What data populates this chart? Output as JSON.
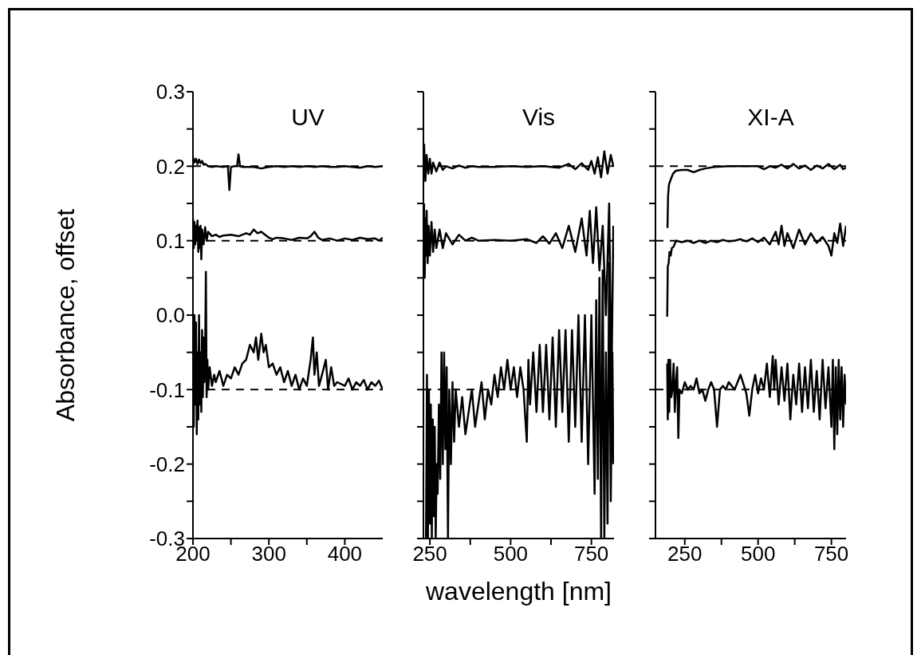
{
  "chart_data": [
    {
      "type": "line",
      "title": "UV",
      "ylabel": "Absorbance, offset",
      "xlim": [
        200,
        450
      ],
      "xticks": [
        200,
        {
          "value": 250,
          "label": null
        },
        300,
        {
          "value": 350,
          "label": null
        },
        400
      ],
      "ylim": [
        -0.3,
        0.3
      ],
      "yticks": [
        -0.3,
        {
          "value": -0.25,
          "label": null
        },
        -0.2,
        {
          "value": -0.15,
          "label": null
        },
        -0.1,
        {
          "value": -0.05,
          "label": null
        },
        {
          "value": 0,
          "label": "0.0"
        },
        {
          "value": 0.05,
          "label": null
        },
        0.1,
        {
          "value": 0.15,
          "label": null
        },
        0.2,
        {
          "value": 0.25,
          "label": null
        },
        0.3
      ],
      "grid": false,
      "legend": false,
      "marker": "none",
      "ref_lines": [
        {
          "axis": "y",
          "value": 0.2,
          "color": "#000000",
          "line_style": "dashed"
        },
        {
          "axis": "y",
          "value": 0.1,
          "color": "#000000",
          "line_style": "dashed"
        },
        {
          "axis": "y",
          "value": -0.1,
          "color": "#000000",
          "line_style": "dashed"
        }
      ],
      "series": [
        {
          "color": "#000000",
          "x": [
            200,
            202,
            204,
            206,
            208,
            210,
            212,
            214,
            216,
            220,
            225,
            230,
            240,
            246,
            248,
            250,
            255,
            258,
            260,
            262,
            265,
            270,
            280,
            290,
            300,
            310,
            320,
            330,
            340,
            350,
            360,
            370,
            380,
            390,
            400,
            410,
            420,
            430,
            440,
            450
          ],
          "values": [
            0.212,
            0.205,
            0.21,
            0.203,
            0.209,
            0.204,
            0.207,
            0.202,
            0.203,
            0.2,
            0.199,
            0.2,
            0.199,
            0.2,
            0.168,
            0.199,
            0.2,
            0.2,
            0.216,
            0.2,
            0.199,
            0.199,
            0.199,
            0.197,
            0.199,
            0.2,
            0.199,
            0.2,
            0.199,
            0.2,
            0.199,
            0.2,
            0.199,
            0.199,
            0.2,
            0.199,
            0.198,
            0.2,
            0.199,
            0.2
          ]
        },
        {
          "color": "#000000",
          "x": [
            200,
            201,
            202,
            203,
            204,
            205,
            206,
            207,
            208,
            209,
            210,
            211,
            212,
            214,
            216,
            218,
            220,
            225,
            230,
            235,
            240,
            250,
            260,
            270,
            275,
            280,
            285,
            290,
            295,
            300,
            305,
            310,
            320,
            330,
            340,
            350,
            355,
            360,
            365,
            370,
            380,
            390,
            400,
            410,
            420,
            430,
            440,
            445,
            450
          ],
          "values": [
            0.13,
            0.09,
            0.125,
            0.095,
            0.12,
            0.1,
            0.127,
            0.085,
            0.118,
            0.09,
            0.12,
            0.075,
            0.115,
            0.095,
            0.118,
            0.1,
            0.112,
            0.106,
            0.108,
            0.105,
            0.107,
            0.108,
            0.106,
            0.11,
            0.108,
            0.115,
            0.11,
            0.112,
            0.108,
            0.104,
            0.102,
            0.104,
            0.103,
            0.101,
            0.104,
            0.103,
            0.106,
            0.112,
            0.104,
            0.101,
            0.103,
            0.1,
            0.103,
            0.101,
            0.104,
            0.102,
            0.103,
            0.1,
            0.104
          ]
        },
        {
          "color": "#000000",
          "x": [
            200,
            201,
            202,
            203,
            204,
            205,
            206,
            207,
            208,
            209,
            210,
            211,
            212,
            213,
            214,
            215,
            216,
            217,
            218,
            219,
            220,
            222,
            225,
            228,
            230,
            235,
            240,
            245,
            250,
            255,
            260,
            265,
            270,
            275,
            280,
            283,
            286,
            290,
            293,
            296,
            300,
            305,
            310,
            315,
            320,
            325,
            330,
            335,
            340,
            345,
            350,
            355,
            358,
            360,
            363,
            366,
            370,
            375,
            378,
            382,
            386,
            390,
            400,
            405,
            410,
            415,
            420,
            425,
            430,
            435,
            440,
            445,
            450
          ],
          "values": [
            -0.02,
            -0.15,
            0.0,
            -0.12,
            -0.01,
            -0.16,
            -0.05,
            -0.14,
            0.0,
            -0.12,
            -0.05,
            -0.13,
            -0.02,
            -0.11,
            -0.03,
            -0.09,
            -0.06,
            0.058,
            -0.11,
            -0.06,
            -0.1,
            -0.07,
            -0.095,
            -0.08,
            -0.09,
            -0.075,
            -0.095,
            -0.08,
            -0.085,
            -0.07,
            -0.08,
            -0.065,
            -0.06,
            -0.04,
            -0.05,
            -0.03,
            -0.06,
            -0.025,
            -0.05,
            -0.04,
            -0.07,
            -0.065,
            -0.08,
            -0.07,
            -0.09,
            -0.075,
            -0.095,
            -0.08,
            -0.1,
            -0.085,
            -0.095,
            -0.06,
            -0.03,
            -0.08,
            -0.05,
            -0.095,
            -0.08,
            -0.06,
            -0.1,
            -0.07,
            -0.095,
            -0.09,
            -0.095,
            -0.085,
            -0.1,
            -0.09,
            -0.095,
            -0.087,
            -0.1,
            -0.09,
            -0.095,
            -0.088,
            -0.1
          ]
        }
      ]
    },
    {
      "type": "line",
      "title": "Vis",
      "xlabel": "wavelength [nm]",
      "xlim": [
        230,
        820
      ],
      "xticks": [
        250,
        {
          "value": 375,
          "label": null
        },
        500,
        {
          "value": 625,
          "label": null
        },
        750
      ],
      "ylim": [
        -0.3,
        0.3
      ],
      "yticks": [
        {
          "value": -0.3,
          "label": null
        },
        {
          "value": -0.25,
          "label": null
        },
        {
          "value": -0.2,
          "label": null
        },
        {
          "value": -0.15,
          "label": null
        },
        {
          "value": -0.1,
          "label": null
        },
        {
          "value": -0.05,
          "label": null
        },
        {
          "value": 0,
          "label": null
        },
        {
          "value": 0.05,
          "label": null
        },
        {
          "value": 0.1,
          "label": null
        },
        {
          "value": 0.15,
          "label": null
        },
        {
          "value": 0.2,
          "label": null
        },
        {
          "value": 0.25,
          "label": null
        },
        {
          "value": 0.3,
          "label": null
        }
      ],
      "tick_labels": "x",
      "grid": false,
      "legend": false,
      "marker": "none",
      "ref_lines": [
        {
          "axis": "y",
          "value": 0.2,
          "color": "#000000",
          "line_style": "dashed"
        },
        {
          "axis": "y",
          "value": 0.1,
          "color": "#000000",
          "line_style": "dashed"
        },
        {
          "axis": "y",
          "value": -0.1,
          "color": "#000000",
          "line_style": "dashed"
        }
      ],
      "series": [
        {
          "color": "#000000",
          "x": [
            232,
            236,
            240,
            245,
            250,
            255,
            260,
            270,
            280,
            290,
            300,
            320,
            340,
            360,
            380,
            400,
            450,
            500,
            550,
            600,
            650,
            680,
            700,
            720,
            740,
            750,
            760,
            770,
            780,
            790,
            800,
            810,
            818
          ],
          "values": [
            0.23,
            0.18,
            0.215,
            0.19,
            0.21,
            0.19,
            0.205,
            0.193,
            0.205,
            0.195,
            0.2,
            0.197,
            0.201,
            0.198,
            0.2,
            0.199,
            0.199,
            0.2,
            0.199,
            0.2,
            0.198,
            0.203,
            0.196,
            0.204,
            0.195,
            0.207,
            0.19,
            0.212,
            0.185,
            0.22,
            0.19,
            0.215,
            0.2
          ]
        },
        {
          "color": "#000000",
          "x": [
            232,
            234,
            236,
            238,
            240,
            243,
            246,
            250,
            255,
            260,
            265,
            270,
            280,
            290,
            300,
            320,
            340,
            360,
            380,
            400,
            450,
            500,
            550,
            580,
            600,
            620,
            640,
            660,
            680,
            700,
            720,
            735,
            745,
            755,
            765,
            775,
            785,
            795,
            805,
            812,
            818
          ],
          "values": [
            0.15,
            0.05,
            0.13,
            0.08,
            0.14,
            0.07,
            0.12,
            0.08,
            0.125,
            0.085,
            0.115,
            0.09,
            0.115,
            0.09,
            0.11,
            0.095,
            0.108,
            0.1,
            0.104,
            0.1,
            0.101,
            0.1,
            0.102,
            0.097,
            0.106,
            0.096,
            0.11,
            0.09,
            0.12,
            0.085,
            0.13,
            0.08,
            0.14,
            0.07,
            0.145,
            0.06,
            0.12,
            0.0,
            0.15,
            -0.1,
            0.12
          ]
        },
        {
          "color": "#000000",
          "x": [
            238,
            241,
            244,
            247,
            250,
            253,
            256,
            259,
            262,
            265,
            268,
            271,
            274,
            278,
            282,
            286,
            290,
            294,
            298,
            302,
            306,
            310,
            315,
            320,
            325,
            330,
            340,
            350,
            360,
            370,
            380,
            390,
            400,
            410,
            420,
            430,
            440,
            450,
            460,
            470,
            480,
            490,
            500,
            510,
            520,
            530,
            540,
            550,
            555,
            560,
            570,
            580,
            590,
            600,
            610,
            620,
            630,
            640,
            650,
            660,
            670,
            680,
            690,
            700,
            710,
            720,
            730,
            740,
            750,
            760,
            765,
            770,
            775,
            780,
            785,
            790,
            795,
            800,
            805,
            810,
            815,
            818
          ],
          "values": [
            -0.3,
            -0.08,
            -0.3,
            -0.1,
            -0.28,
            -0.12,
            -0.3,
            -0.14,
            -0.27,
            -0.15,
            -0.3,
            -0.2,
            -0.24,
            -0.12,
            -0.22,
            -0.05,
            -0.2,
            -0.05,
            -0.18,
            -0.07,
            -0.3,
            -0.1,
            -0.2,
            -0.09,
            -0.17,
            -0.1,
            -0.15,
            -0.11,
            -0.16,
            -0.13,
            -0.1,
            -0.15,
            -0.12,
            -0.09,
            -0.14,
            -0.1,
            -0.12,
            -0.08,
            -0.11,
            -0.07,
            -0.1,
            -0.06,
            -0.1,
            -0.07,
            -0.11,
            -0.07,
            -0.1,
            -0.17,
            -0.06,
            -0.12,
            -0.05,
            -0.13,
            -0.04,
            -0.13,
            -0.04,
            -0.14,
            -0.03,
            -0.15,
            -0.02,
            -0.13,
            -0.02,
            -0.17,
            -0.02,
            -0.15,
            0.0,
            -0.17,
            0.0,
            -0.2,
            0.0,
            -0.24,
            0.02,
            -0.22,
            0.05,
            -0.3,
            0.06,
            -0.3,
            -0.05,
            -0.28,
            0.07,
            -0.25,
            -0.05,
            -0.2
          ]
        }
      ]
    },
    {
      "type": "line",
      "title": "XI-A",
      "xlim": [
        150,
        800
      ],
      "xticks": [
        250,
        {
          "value": 375,
          "label": null
        },
        500,
        {
          "value": 625,
          "label": null
        },
        750
      ],
      "ylim": [
        -0.3,
        0.3
      ],
      "yticks": [
        {
          "value": -0.3,
          "label": null
        },
        {
          "value": -0.25,
          "label": null
        },
        {
          "value": -0.2,
          "label": null
        },
        {
          "value": -0.15,
          "label": null
        },
        {
          "value": -0.1,
          "label": null
        },
        {
          "value": -0.05,
          "label": null
        },
        {
          "value": 0,
          "label": null
        },
        {
          "value": 0.05,
          "label": null
        },
        {
          "value": 0.1,
          "label": null
        },
        {
          "value": 0.15,
          "label": null
        },
        {
          "value": 0.2,
          "label": null
        },
        {
          "value": 0.25,
          "label": null
        },
        {
          "value": 0.3,
          "label": null
        }
      ],
      "tick_labels": "x",
      "grid": false,
      "legend": false,
      "marker": "none",
      "ref_lines": [
        {
          "axis": "y",
          "value": 0.2,
          "color": "#000000",
          "line_style": "dashed"
        },
        {
          "axis": "y",
          "value": 0.1,
          "color": "#000000",
          "line_style": "dashed"
        },
        {
          "axis": "y",
          "value": -0.1,
          "color": "#000000",
          "line_style": "dashed"
        }
      ],
      "series": [
        {
          "color": "#000000",
          "x": [
            191,
            193,
            196,
            200,
            205,
            210,
            220,
            240,
            260,
            280,
            300,
            320,
            350,
            400,
            450,
            500,
            520,
            540,
            560,
            580,
            600,
            620,
            640,
            660,
            680,
            700,
            720,
            740,
            760,
            780,
            790,
            800
          ],
          "values": [
            0.117,
            0.16,
            0.175,
            0.18,
            0.185,
            0.19,
            0.194,
            0.195,
            0.195,
            0.192,
            0.195,
            0.197,
            0.199,
            0.2,
            0.2,
            0.2,
            0.196,
            0.2,
            0.198,
            0.202,
            0.197,
            0.203,
            0.197,
            0.201,
            0.195,
            0.201,
            0.197,
            0.203,
            0.196,
            0.202,
            0.196,
            0.198
          ]
        },
        {
          "color": "#000000",
          "x": [
            190,
            192,
            195,
            198,
            202,
            206,
            212,
            220,
            240,
            260,
            280,
            300,
            320,
            340,
            360,
            380,
            400,
            420,
            440,
            460,
            480,
            500,
            520,
            540,
            560,
            570,
            580,
            590,
            600,
            620,
            640,
            660,
            680,
            700,
            720,
            740,
            750,
            760,
            770,
            780,
            790,
            800
          ],
          "values": [
            -0.002,
            0.065,
            0.07,
            0.085,
            0.08,
            0.09,
            0.092,
            0.1,
            0.098,
            0.1,
            0.097,
            0.1,
            0.097,
            0.1,
            0.098,
            0.101,
            0.099,
            0.1,
            0.102,
            0.099,
            0.103,
            0.098,
            0.104,
            0.095,
            0.112,
            0.095,
            0.12,
            0.093,
            0.11,
            0.09,
            0.115,
            0.095,
            0.11,
            0.097,
            0.105,
            0.093,
            0.08,
            0.11,
            0.097,
            0.123,
            0.093,
            0.12
          ]
        },
        {
          "color": "#000000",
          "x": [
            190,
            192,
            194,
            197,
            200,
            204,
            208,
            212,
            216,
            220,
            224,
            228,
            232,
            240,
            250,
            260,
            270,
            280,
            290,
            300,
            310,
            320,
            330,
            340,
            350,
            360,
            370,
            380,
            390,
            400,
            420,
            440,
            460,
            470,
            480,
            490,
            500,
            510,
            520,
            530,
            540,
            550,
            555,
            560,
            570,
            580,
            590,
            600,
            610,
            620,
            630,
            640,
            650,
            660,
            670,
            680,
            690,
            700,
            710,
            720,
            730,
            740,
            750,
            755,
            760,
            765,
            770,
            775,
            780,
            785,
            790,
            795,
            800
          ],
          "values": [
            -0.065,
            -0.14,
            -0.06,
            -0.13,
            -0.06,
            -0.11,
            -0.1,
            -0.065,
            -0.13,
            -0.09,
            -0.07,
            -0.165,
            -0.1,
            -0.105,
            -0.09,
            -0.1,
            -0.095,
            -0.1,
            -0.085,
            -0.105,
            -0.1,
            -0.115,
            -0.1,
            -0.09,
            -0.1,
            -0.15,
            -0.1,
            -0.095,
            -0.1,
            -0.09,
            -0.1,
            -0.08,
            -0.105,
            -0.135,
            -0.1,
            -0.08,
            -0.105,
            -0.085,
            -0.1,
            -0.065,
            -0.11,
            -0.055,
            -0.1,
            -0.06,
            -0.12,
            -0.07,
            -0.115,
            -0.065,
            -0.14,
            -0.08,
            -0.12,
            -0.065,
            -0.13,
            -0.07,
            -0.125,
            -0.06,
            -0.13,
            -0.075,
            -0.14,
            -0.06,
            -0.125,
            -0.07,
            -0.15,
            -0.06,
            -0.18,
            -0.07,
            -0.16,
            -0.06,
            -0.14,
            -0.07,
            -0.15,
            -0.08,
            -0.12
          ]
        }
      ]
    }
  ]
}
